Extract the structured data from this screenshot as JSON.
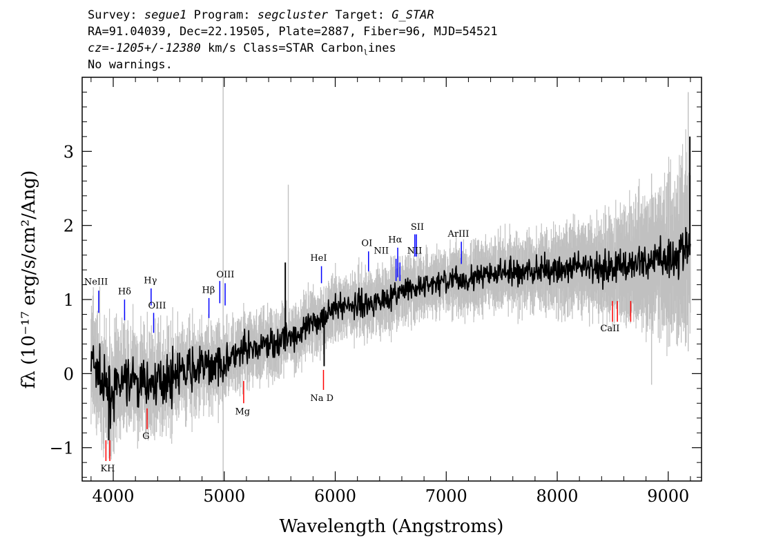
{
  "header": {
    "line1": {
      "survey_label": "Survey:",
      "survey": "segue1",
      "program_label": "Program:",
      "program": "segcluster",
      "target_label": "Target:",
      "target": "G_STAR"
    },
    "line2": "RA=91.04039, Dec=22.19505, Plate=2887, Fiber=96, MJD=54521",
    "line3": {
      "cz": "cz=-1205+/-12380",
      "rest": "km/s Class=STAR Carbon",
      "sub": "l",
      "tail": "ines"
    },
    "line4": "No warnings."
  },
  "chart_data": {
    "type": "line",
    "xlabel": "Wavelength (Angstroms)",
    "ylabel": "fλ (10⁻¹⁷ erg/s/cm²/Ang)",
    "xlim": [
      3720,
      9300
    ],
    "ylim": [
      -1.45,
      4.0
    ],
    "x_ticks": [
      4000,
      5000,
      6000,
      7000,
      8000,
      9000
    ],
    "y_ticks": [
      -1,
      0,
      1,
      2,
      3
    ],
    "x_range": [
      3800,
      9200
    ],
    "grid": false,
    "series": [
      {
        "role": "flux",
        "color": "#000000",
        "trend": [
          [
            3800,
            0.2
          ],
          [
            3950,
            -0.3
          ],
          [
            4100,
            -0.1
          ],
          [
            4300,
            -0.15
          ],
          [
            4500,
            -0.05
          ],
          [
            4700,
            0.05
          ],
          [
            5000,
            0.15
          ],
          [
            5200,
            0.3
          ],
          [
            5500,
            0.45
          ],
          [
            5700,
            0.55
          ],
          [
            6000,
            0.9
          ],
          [
            6300,
            0.95
          ],
          [
            6600,
            1.1
          ],
          [
            7000,
            1.25
          ],
          [
            7500,
            1.35
          ],
          [
            8000,
            1.4
          ],
          [
            8500,
            1.45
          ],
          [
            9000,
            1.55
          ],
          [
            9200,
            1.7
          ]
        ],
        "noise": [
          [
            3800,
            0.25
          ],
          [
            5000,
            0.18
          ],
          [
            6000,
            0.12
          ],
          [
            7000,
            0.12
          ],
          [
            8500,
            0.15
          ],
          [
            9200,
            0.25
          ]
        ]
      },
      {
        "role": "error",
        "color": "#c0c0c0",
        "half_width": [
          [
            3800,
            0.6
          ],
          [
            4500,
            0.45
          ],
          [
            5000,
            0.35
          ],
          [
            6000,
            0.3
          ],
          [
            7500,
            0.35
          ],
          [
            8500,
            0.5
          ],
          [
            9200,
            1.0
          ]
        ]
      }
    ],
    "spikes": [
      {
        "x": 5577,
        "y0": 0.5,
        "y1": 2.55,
        "color": "#c0c0c0"
      },
      {
        "x": 4990,
        "y0": -1.45,
        "y1": 4.0,
        "color": "#c0c0c0"
      },
      {
        "x": 8850,
        "y0": -0.15,
        "y1": 2.7,
        "color": "#c0c0c0"
      },
      {
        "x": 9180,
        "y0": 0.3,
        "y1": 3.8,
        "color": "#c0c0c0"
      },
      {
        "x": 9195,
        "y0": 1.6,
        "y1": 3.2,
        "color": "#000000"
      },
      {
        "x": 3960,
        "y0": -0.9,
        "y1": 0.1,
        "color": "#000000"
      },
      {
        "x": 5900,
        "y0": 0.1,
        "y1": 0.9,
        "color": "#000000"
      },
      {
        "x": 5550,
        "y0": 0.3,
        "y1": 1.5,
        "color": "#000000"
      }
    ],
    "emission_lines": [
      {
        "label": "NeIII",
        "x": 3869,
        "y0": 0.82,
        "y1": 1.12
      },
      {
        "label": "Hδ",
        "x": 4102,
        "y0": 0.72,
        "y1": 1.0
      },
      {
        "label": "Hγ",
        "x": 4341,
        "y0": 0.92,
        "y1": 1.15
      },
      {
        "label": "OIII",
        "x": 4364,
        "y0": 0.55,
        "y1": 0.82
      },
      {
        "label": "Hβ",
        "x": 4862,
        "y0": 0.75,
        "y1": 1.02
      },
      {
        "label": "OIII",
        "x": 4960,
        "y0": 0.95,
        "y1": 1.25
      },
      {
        "label": "",
        "x": 5008,
        "y0": 0.92,
        "y1": 1.22
      },
      {
        "label": "HeI",
        "x": 5876,
        "y0": 1.22,
        "y1": 1.45
      },
      {
        "label": "OI",
        "x": 6300,
        "y0": 1.38,
        "y1": 1.65
      },
      {
        "label": "NII",
        "x": 6548,
        "y0": 1.25,
        "y1": 1.55
      },
      {
        "label": "Hα",
        "x": 6563,
        "y0": 1.3,
        "y1": 1.7
      },
      {
        "label": "NII",
        "x": 6583,
        "y0": 1.25,
        "y1": 1.5
      },
      {
        "label": "SII",
        "x": 6717,
        "y0": 1.58,
        "y1": 1.88
      },
      {
        "label": "",
        "x": 6731,
        "y0": 1.58,
        "y1": 1.88
      },
      {
        "label": "ArIII",
        "x": 7136,
        "y0": 1.48,
        "y1": 1.78
      }
    ],
    "absorption_lines": [
      {
        "label": "K",
        "x": 3934,
        "y0": -1.18,
        "y1": -0.9
      },
      {
        "label": "H",
        "x": 3969,
        "y0": -1.18,
        "y1": -0.9
      },
      {
        "label": "G",
        "x": 4305,
        "y0": -0.75,
        "y1": -0.47
      },
      {
        "label": "Mg",
        "x": 5175,
        "y0": -0.4,
        "y1": -0.1
      },
      {
        "label": "Na  D",
        "x": 5894,
        "y0": -0.22,
        "y1": 0.05
      },
      {
        "label": "CaII",
        "x": 8498,
        "y0": 0.7,
        "y1": 0.98
      },
      {
        "label": "",
        "x": 8542,
        "y0": 0.7,
        "y1": 0.98
      },
      {
        "label": "",
        "x": 8662,
        "y0": 0.7,
        "y1": 0.98
      }
    ],
    "line_label_positions": [
      {
        "label": "NeIII",
        "x": 3845,
        "y": 1.2
      },
      {
        "label": "Hδ",
        "x": 4102,
        "y": 1.07
      },
      {
        "label": "Hγ",
        "x": 4335,
        "y": 1.22
      },
      {
        "label": "OIII",
        "x": 4395,
        "y": 0.88
      },
      {
        "label": "Hβ",
        "x": 4858,
        "y": 1.09
      },
      {
        "label": "OIII",
        "x": 5010,
        "y": 1.3
      },
      {
        "label": "HeI",
        "x": 5850,
        "y": 1.52
      },
      {
        "label": "OI",
        "x": 6285,
        "y": 1.72
      },
      {
        "label": "NII",
        "x": 6415,
        "y": 1.62
      },
      {
        "label": "Hα",
        "x": 6540,
        "y": 1.77
      },
      {
        "label": "NII",
        "x": 6715,
        "y": 1.62
      },
      {
        "label": "SII",
        "x": 6740,
        "y": 1.94
      },
      {
        "label": "ArIII",
        "x": 7110,
        "y": 1.85
      },
      {
        "label": "KH",
        "x": 3950,
        "y": -1.32
      },
      {
        "label": "G",
        "x": 4295,
        "y": -0.88
      },
      {
        "label": "Mg",
        "x": 5165,
        "y": -0.55
      },
      {
        "label": "Na  D",
        "x": 5880,
        "y": -0.37
      },
      {
        "label": "CaII",
        "x": 8475,
        "y": 0.57
      }
    ],
    "colors": {
      "emission": "#0000ff",
      "absorption": "#ff0000",
      "flux": "#000000",
      "error": "#c0c0c0"
    }
  }
}
